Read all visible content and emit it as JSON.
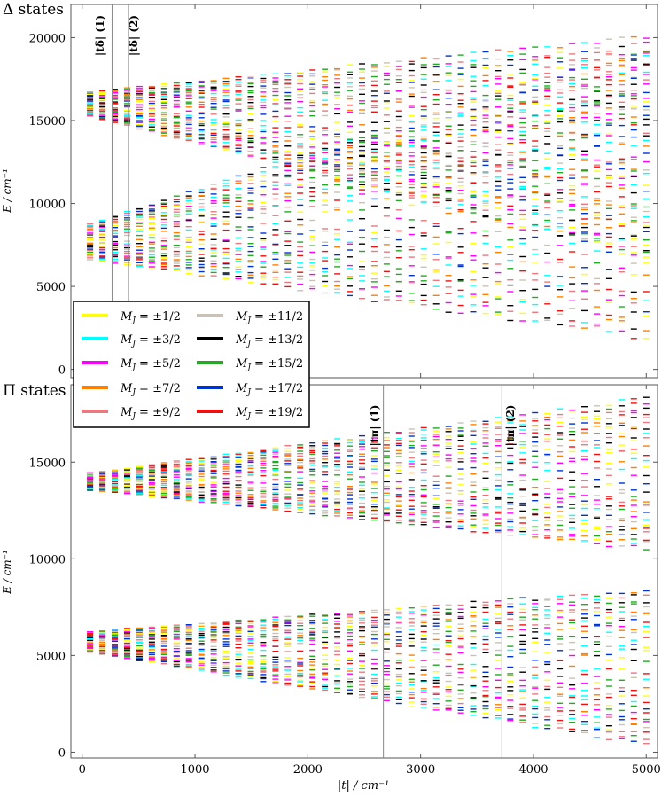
{
  "chart_data": [
    {
      "type": "scatter",
      "panel": "delta",
      "title": "Δ states",
      "ylabel": "E / cm⁻¹",
      "xlim": [
        -100,
        5100
      ],
      "ylim": [
        -500,
        22000
      ],
      "yticks": [
        0,
        5000,
        10000,
        15000,
        20000
      ],
      "grid": false,
      "legend_position": "bottom-left",
      "vlines": [
        {
          "x": 265,
          "label": "|tδ| (1)"
        },
        {
          "x": 410,
          "label": "|tδ| (2)"
        }
      ],
      "bands": [
        {
          "name": "upper",
          "x_start": 70,
          "x_end": 5000,
          "center_start": 16000,
          "center_end": 13400,
          "half_start": 750,
          "half_end": 6800
        },
        {
          "name": "lower",
          "x_start": 70,
          "x_end": 5000,
          "center_start": 7700,
          "center_end": 10700,
          "half_start": 1100,
          "half_end": 9000
        }
      ]
    },
    {
      "type": "scatter",
      "panel": "pi",
      "title": "Π states",
      "xlabel": "|t| / cm⁻¹",
      "ylabel": "E / cm⁻¹",
      "xlim": [
        -100,
        5100
      ],
      "ylim": [
        -300,
        19000
      ],
      "xticks": [
        0,
        1000,
        2000,
        3000,
        4000,
        5000
      ],
      "yticks": [
        0,
        5000,
        10000,
        15000
      ],
      "grid": false,
      "vlines": [
        {
          "x": 2670,
          "label": "|tπ| (1)"
        },
        {
          "x": 3720,
          "label": "|tπ| (2)"
        }
      ],
      "bands": [
        {
          "name": "upper",
          "x_start": 70,
          "x_end": 5000,
          "center_start": 14000,
          "center_end": 14400,
          "half_start": 450,
          "half_end": 4000
        },
        {
          "name": "lower",
          "x_start": 70,
          "x_end": 5000,
          "center_start": 5700,
          "center_end": 4400,
          "half_start": 550,
          "half_end": 4100
        }
      ]
    }
  ],
  "legend": {
    "entries": [
      {
        "symbol": "M",
        "sub": "J",
        "value": " = ±1/2",
        "color": "#ffff00"
      },
      {
        "symbol": "M",
        "sub": "J",
        "value": " = ±3/2",
        "color": "#00ffff"
      },
      {
        "symbol": "M",
        "sub": "J",
        "value": " = ±5/2",
        "color": "#ff00ff"
      },
      {
        "symbol": "M",
        "sub": "J",
        "value": " = ±7/2",
        "color": "#ff8000"
      },
      {
        "symbol": "M",
        "sub": "J",
        "value": " = ±9/2",
        "color": "#e67a80"
      },
      {
        "symbol": "M",
        "sub": "J",
        "value": " = ±11/2",
        "color": "#c8c2b8"
      },
      {
        "symbol": "M",
        "sub": "J",
        "value": " = ±13/2",
        "color": "#000000"
      },
      {
        "symbol": "M",
        "sub": "J",
        "value": " = ±15/2",
        "color": "#22aa22"
      },
      {
        "symbol": "M",
        "sub": "J",
        "value": " = ±17/2",
        "color": "#0033cc"
      },
      {
        "symbol": "M",
        "sub": "J",
        "value": " = ±19/2",
        "color": "#ee1111"
      }
    ]
  }
}
